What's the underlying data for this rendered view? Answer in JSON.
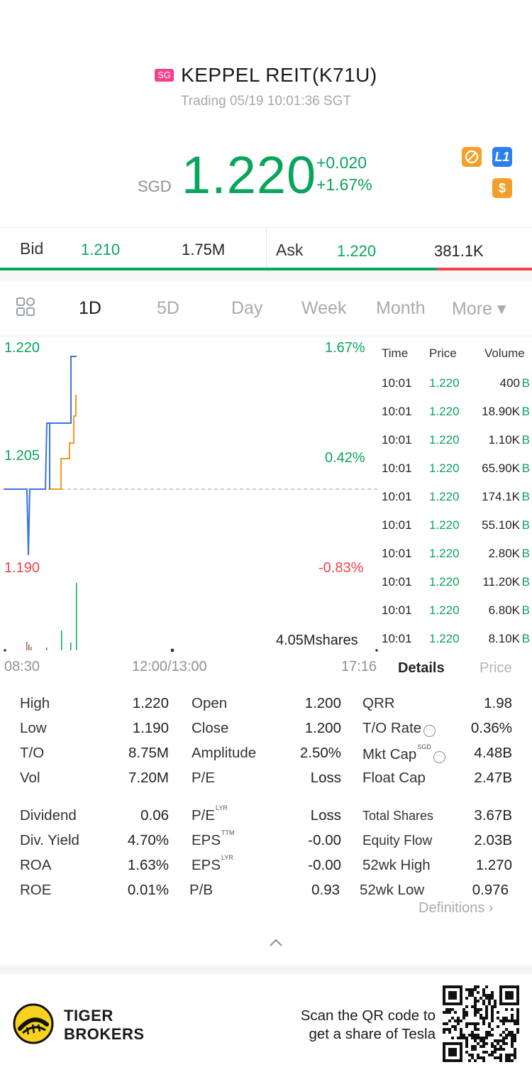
{
  "header": {
    "market_badge": "SG",
    "title": "KEPPEL REIT(K71U)",
    "status": "Trading 05/19 10:01:36 SGT",
    "currency": "SGD",
    "price": "1.220",
    "change_abs": "+0.020",
    "change_pct": "+1.67%",
    "icons": [
      "no-short-icon",
      "level1-icon",
      "dollar-icon"
    ],
    "icon_l1_text": "L1",
    "icon_dollar_text": "$"
  },
  "bidask": {
    "bid_label": "Bid",
    "bid_price": "1.210",
    "bid_size": "1.75M",
    "ask_label": "Ask",
    "ask_price": "1.220",
    "ask_size": "381.1K",
    "bid_ratio": 0.8213
  },
  "tabs": [
    "1D",
    "5D",
    "Day",
    "Week",
    "Month",
    "More ▾"
  ],
  "active_tab": "1D",
  "chart": {
    "y_high": "1.220",
    "y_mid": "1.205",
    "y_low": "1.190",
    "pct_high": "1.67%",
    "pct_mid": "0.42%",
    "pct_low": "-0.83%",
    "volume_label": "4.05Mshares",
    "x_start": "08:30",
    "x_mid": "12:00/13:00",
    "x_end": "17:16"
  },
  "trades": {
    "headers": [
      "Time",
      "Price",
      "Volume"
    ],
    "rows": [
      {
        "time": "10:01",
        "price": "1.220",
        "volume": "400",
        "side": "B"
      },
      {
        "time": "10:01",
        "price": "1.220",
        "volume": "18.90K",
        "side": "B"
      },
      {
        "time": "10:01",
        "price": "1.220",
        "volume": "1.10K",
        "side": "B"
      },
      {
        "time": "10:01",
        "price": "1.220",
        "volume": "65.90K",
        "side": "B"
      },
      {
        "time": "10:01",
        "price": "1.220",
        "volume": "174.1K",
        "side": "B"
      },
      {
        "time": "10:01",
        "price": "1.220",
        "volume": "55.10K",
        "side": "B"
      },
      {
        "time": "10:01",
        "price": "1.220",
        "volume": "2.80K",
        "side": "B"
      },
      {
        "time": "10:01",
        "price": "1.220",
        "volume": "11.20K",
        "side": "B"
      },
      {
        "time": "10:01",
        "price": "1.220",
        "volume": "6.80K",
        "side": "B"
      },
      {
        "time": "10:01",
        "price": "1.220",
        "volume": "8.10K",
        "side": "B"
      }
    ],
    "details_tab": "Details",
    "price_tab": "Price"
  },
  "stats": {
    "high_l": "High",
    "high_v": "1.220",
    "low_l": "Low",
    "low_v": "1.190",
    "to_l": "T/O",
    "to_v": "8.75M",
    "vol_l": "Vol",
    "vol_v": "7.20M",
    "open_l": "Open",
    "open_v": "1.200",
    "close_l": "Close",
    "close_v": "1.200",
    "amp_l": "Amplitude",
    "amp_v": "2.50%",
    "pe_l": "P/E",
    "pe_v": "Loss",
    "qrr_l": "QRR",
    "qrr_v": "1.98",
    "torate_l": "T/O Rate",
    "torate_v": "0.36%",
    "mktcap_l": "Mkt Cap",
    "mktcap_sup": "SGD",
    "mktcap_v": "4.48B",
    "floatcap_l": "Float Cap",
    "floatcap_v": "2.47B",
    "div_l": "Dividend",
    "div_v": "0.06",
    "divy_l": "Div. Yield",
    "divy_v": "4.70%",
    "roa_l": "ROA",
    "roa_v": "1.63%",
    "roe_l": "ROE",
    "roe_v": "0.01%",
    "pelyr_l": "P/E",
    "pelyr_sup": "LYR",
    "pelyr_v": "Loss",
    "epsttm_l": "EPS",
    "epsttm_sup": "TTM",
    "epsttm_v": "-0.00",
    "epslyr_l": "EPS",
    "epslyr_sup": "LYR",
    "epslyr_v": "-0.00",
    "pb_l": "P/B",
    "pb_v": "0.93",
    "shares_l": "Total Shares",
    "shares_v": "3.67B",
    "eqflow_l": "Equity Flow",
    "eqflow_v": "2.03B",
    "wkhigh_l": "52wk High",
    "wkhigh_v": "1.270",
    "wklow_l": "52wk Low",
    "wklow_v": "0.976",
    "info_mark": "···"
  },
  "definitions": "Definitions ›",
  "footer": {
    "brand_line1": "TIGER",
    "brand_line2": "BROKERS",
    "scan_line1": "Scan the QR code to",
    "scan_line2": "get a share of Tesla"
  },
  "colors": {
    "up": "#0aa55c",
    "down": "#f0434b",
    "line_blue": "#3b74e0",
    "line_orange": "#f29a1f"
  }
}
